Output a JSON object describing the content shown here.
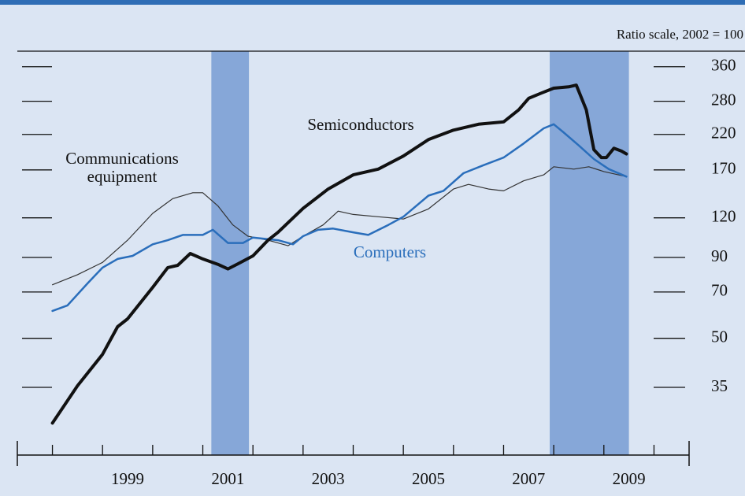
{
  "chart_data": {
    "type": "line",
    "scale_note": "Ratio scale, 2002 = 100",
    "annotations": [
      "Semiconductors",
      "Communications",
      "equipment",
      "Computers"
    ],
    "log_scale": true,
    "xlim": [
      1997.3,
      2010.7
    ],
    "xticks": [
      {
        "value": 1999.5,
        "label": "1999"
      },
      {
        "value": 2001.5,
        "label": "2001"
      },
      {
        "value": 2003.5,
        "label": "2003"
      },
      {
        "value": 2005.5,
        "label": "2005"
      },
      {
        "value": 2007.5,
        "label": "2007"
      },
      {
        "value": 2009.5,
        "label": "2009"
      }
    ],
    "xminor_ticks": [
      1998,
      1999,
      2000,
      2001,
      2002,
      2003,
      2004,
      2005,
      2006,
      2007,
      2008,
      2009,
      2010
    ],
    "ylim": [
      21.4,
      403
    ],
    "yticks": [
      35,
      50,
      70,
      90,
      120,
      170,
      220,
      280,
      360
    ],
    "shaded_periods": [
      [
        2001.17,
        2001.92
      ],
      [
        2007.92,
        2009.5
      ]
    ],
    "shade_color": "#86a7d8",
    "series": [
      {
        "name": "Semiconductors",
        "color": "#111111",
        "linewidth": 4,
        "x": [
          1998.0,
          1998.5,
          1999.0,
          1999.3,
          1999.5,
          2000.0,
          2000.3,
          2000.5,
          2000.75,
          2001.0,
          2001.3,
          2001.5,
          2001.7,
          2002.0,
          2002.3,
          2002.5,
          2003.0,
          2003.5,
          2004.0,
          2004.5,
          2005.0,
          2005.5,
          2006.0,
          2006.5,
          2007.0,
          2007.3,
          2007.5,
          2007.75,
          2008.0,
          2008.3,
          2008.45,
          2008.65,
          2008.8,
          2008.95,
          2009.05,
          2009.2,
          2009.35,
          2009.45
        ],
        "values": [
          27,
          35.4,
          44.5,
          54.4,
          57.6,
          72.4,
          83.6,
          85,
          92.6,
          89,
          85.6,
          82.8,
          85.9,
          91,
          102,
          108,
          128.5,
          148,
          164,
          171,
          188,
          212,
          227,
          237,
          241,
          263,
          286,
          297,
          308,
          311,
          315,
          263,
          197,
          186,
          186,
          199,
          195,
          191
        ]
      },
      {
        "name": "Computers",
        "color": "#2a6ebb",
        "linewidth": 2.5,
        "x": [
          1998.0,
          1998.3,
          1998.7,
          1999.0,
          1999.3,
          1999.6,
          2000.0,
          2000.3,
          2000.6,
          2001.0,
          2001.2,
          2001.5,
          2001.8,
          2002.0,
          2002.5,
          2002.8,
          2003.0,
          2003.3,
          2003.6,
          2004.0,
          2004.3,
          2004.7,
          2005.0,
          2005.5,
          2005.8,
          2006.2,
          2006.6,
          2007.0,
          2007.4,
          2007.8,
          2008.0,
          2008.2,
          2008.5,
          2008.8,
          2009.1,
          2009.45
        ],
        "values": [
          61,
          63.5,
          74.5,
          83.6,
          89,
          91,
          99,
          102,
          106,
          106,
          110,
          100,
          100,
          104,
          102,
          99,
          105,
          110,
          111,
          108,
          106,
          114,
          121,
          141,
          146,
          166,
          176,
          186,
          206,
          230,
          237,
          223,
          203,
          184,
          171,
          162
        ]
      },
      {
        "name": "Communications equipment",
        "color": "#333333",
        "linewidth": 1.2,
        "x": [
          1998.0,
          1998.5,
          1999.0,
          1999.5,
          2000.0,
          2000.4,
          2000.8,
          2001.0,
          2001.3,
          2001.6,
          2001.9,
          2002.3,
          2002.7,
          2003.0,
          2003.4,
          2003.7,
          2004.0,
          2004.5,
          2005.0,
          2005.5,
          2006.0,
          2006.3,
          2006.7,
          2007.0,
          2007.4,
          2007.8,
          2008.0,
          2008.4,
          2008.7,
          2009.0,
          2009.45
        ],
        "values": [
          73.8,
          79.4,
          86.8,
          102,
          124,
          138,
          144,
          144,
          131,
          114,
          105,
          102,
          98,
          105,
          114,
          126,
          123,
          121,
          119,
          128,
          148,
          153,
          148,
          146,
          157,
          164,
          174,
          171,
          174,
          168,
          162
        ]
      }
    ]
  }
}
